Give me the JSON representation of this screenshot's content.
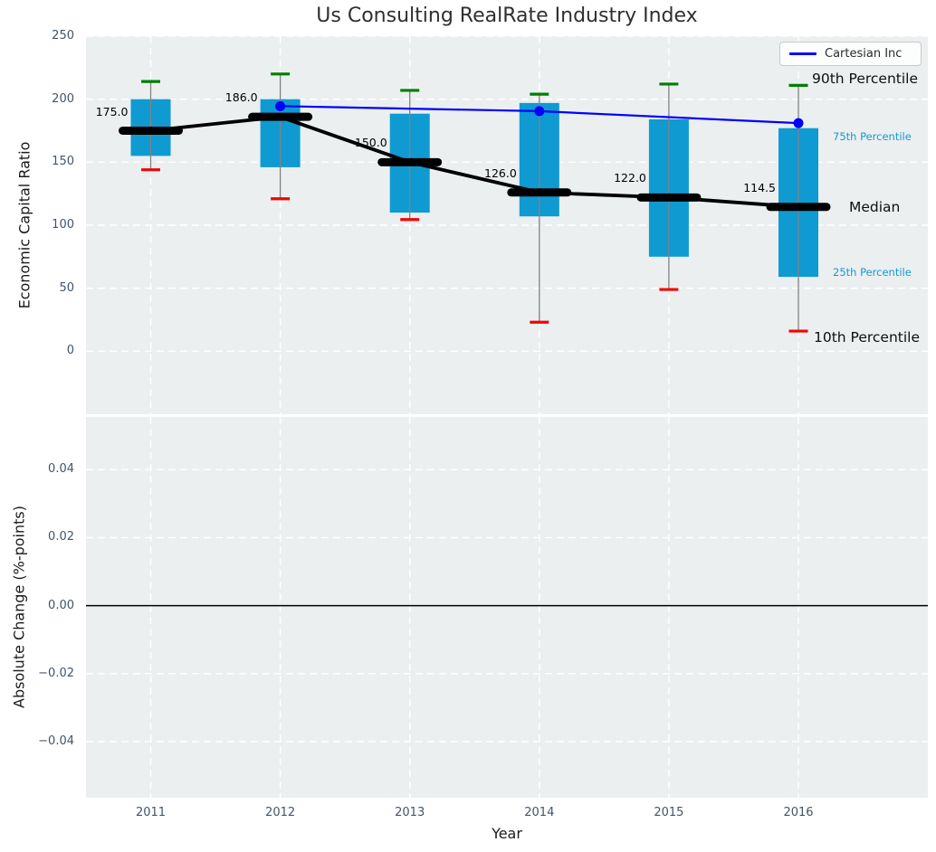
{
  "title": "Us Consulting RealRate Industry Index",
  "legend": {
    "label": "Cartesian Inc"
  },
  "axis_labels": {
    "top_y": "Economic Capital Ratio",
    "bottom_y": "Absolute Change (%-points)",
    "x": "Year"
  },
  "side_labels": {
    "p90": "90th Percentile",
    "p75": "75th Percentile",
    "median": "Median",
    "p25": "25th Percentile",
    "p10": "10th Percentile"
  },
  "chart_data": {
    "type": "boxplot",
    "title": "Us Consulting RealRate Industry Index",
    "xlabel": "Year",
    "ylabel_top": "Economic Capital Ratio",
    "ylabel_bottom": "Absolute Change (%-points)",
    "categories": [
      "2011",
      "2012",
      "2013",
      "2014",
      "2015",
      "2016"
    ],
    "boxes": {
      "p90": [
        214,
        220,
        207,
        204,
        212,
        211
      ],
      "p75": [
        200,
        200,
        188.5,
        197,
        184,
        177
      ],
      "median": [
        175.0,
        186.0,
        150.0,
        126.0,
        122.0,
        114.5
      ],
      "p25": [
        155,
        146,
        110,
        107,
        75,
        59
      ],
      "p10": [
        144,
        121,
        104.5,
        23,
        49,
        16
      ]
    },
    "median_labels": [
      "175.0",
      "186.0",
      "150.0",
      "126.0",
      "122.0",
      "114.5"
    ],
    "line_series": {
      "name": "Cartesian Inc",
      "x": [
        "2012",
        "2014",
        "2016"
      ],
      "values": [
        194.5,
        190.5,
        181.0
      ]
    },
    "top_axis": {
      "ylim": [
        -50,
        250
      ],
      "ytick_values": [
        250,
        200,
        150,
        100,
        50,
        0
      ],
      "ytick_labels": [
        "250",
        "200",
        "150",
        "100",
        "50",
        "0"
      ],
      "grid": true
    },
    "bottom_axis": {
      "ylim": [
        -0.0565,
        0.0555
      ],
      "ytick_values": [
        0.04,
        0.02,
        0.0,
        -0.02,
        -0.04
      ],
      "ytick_labels": [
        "0.04",
        "0.02",
        "0.00",
        "−0.02",
        "−0.04"
      ],
      "zero_line": 0.0,
      "grid": true
    },
    "legend_position": "upper right",
    "colors": {
      "box": "#0f9ad2",
      "whisker": "#828282",
      "cap_top": "#007d00",
      "cap_bottom": "#f10505",
      "median": "#000000",
      "line": "#0000ff",
      "panel_bg": "#ebeff0",
      "grid": "#ffffff",
      "cyan_label": "#1599d2"
    }
  }
}
